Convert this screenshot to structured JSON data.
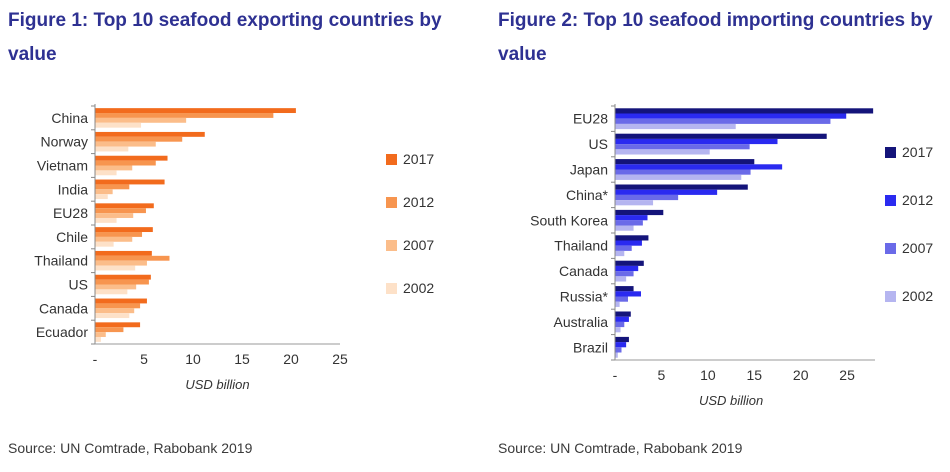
{
  "figure1": {
    "title": "Figure 1: Top 10 seafood exporting countries by value",
    "source": "Source: UN Comtrade, Rabobank 2019"
  },
  "figure2": {
    "title": "Figure 2: Top 10 seafood importing countries by value",
    "source": "Source: UN Comtrade, Rabobank 2019"
  },
  "chart_data": [
    {
      "type": "bar",
      "orientation": "horizontal",
      "title": "Figure 1: Top 10 seafood exporting countries by value",
      "xlabel": "USD billion",
      "ylabel": "",
      "xlim": [
        0,
        25
      ],
      "xticks": [
        "-",
        "5",
        "10",
        "15",
        "20",
        "25"
      ],
      "grid": false,
      "legend_position": "right",
      "categories": [
        "China",
        "Norway",
        "Vietnam",
        "India",
        "EU28",
        "Chile",
        "Thailand",
        "US",
        "Canada",
        "Ecuador"
      ],
      "series": [
        {
          "name": "2017",
          "color": "#f26b1d",
          "values": [
            20.5,
            11.2,
            7.4,
            7.1,
            6.0,
            5.9,
            5.8,
            5.7,
            5.3,
            4.6
          ]
        },
        {
          "name": "2012",
          "color": "#f7954f",
          "values": [
            18.2,
            8.9,
            6.2,
            3.5,
            5.2,
            4.8,
            7.6,
            5.5,
            4.6,
            2.9
          ]
        },
        {
          "name": "2007",
          "color": "#fbbd8a",
          "values": [
            9.3,
            6.2,
            3.8,
            1.8,
            3.9,
            3.8,
            5.3,
            4.2,
            4.0,
            1.1
          ]
        },
        {
          "name": "2002",
          "color": "#fde1c8",
          "values": [
            4.7,
            3.4,
            2.2,
            1.3,
            2.2,
            1.9,
            4.1,
            3.3,
            3.5,
            0.6
          ]
        }
      ]
    },
    {
      "type": "bar",
      "orientation": "horizontal",
      "title": "Figure 2: Top 10 seafood importing countries by value",
      "xlabel": "USD billion",
      "ylabel": "",
      "xlim": [
        0,
        28
      ],
      "xticks": [
        "-",
        "5",
        "10",
        "15",
        "20",
        "25"
      ],
      "grid": false,
      "legend_position": "right",
      "categories": [
        "EU28",
        "US",
        "Japan",
        "China*",
        "South Korea",
        "Thailand",
        "Canada",
        "Russia*",
        "Australia",
        "Brazil"
      ],
      "series": [
        {
          "name": "2017",
          "color": "#14147a",
          "values": [
            27.8,
            22.8,
            15.0,
            14.3,
            5.2,
            3.6,
            3.1,
            2.0,
            1.7,
            1.5
          ]
        },
        {
          "name": "2012",
          "color": "#2a2af0",
          "values": [
            24.9,
            17.5,
            18.0,
            11.0,
            3.5,
            2.9,
            2.5,
            2.8,
            1.5,
            1.2
          ]
        },
        {
          "name": "2007",
          "color": "#6a6ae8",
          "values": [
            23.2,
            14.5,
            14.6,
            6.8,
            3.0,
            1.8,
            2.0,
            1.4,
            1.0,
            0.7
          ]
        },
        {
          "name": "2002",
          "color": "#b5b5f0",
          "values": [
            13.0,
            10.2,
            13.6,
            4.1,
            2.0,
            1.0,
            1.2,
            0.5,
            0.6,
            0.3
          ]
        }
      ]
    }
  ]
}
